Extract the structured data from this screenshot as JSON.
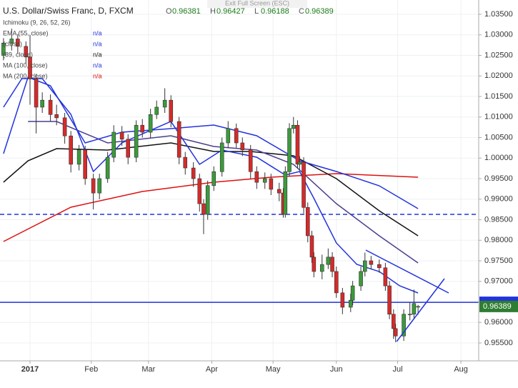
{
  "chart_data": {
    "type": "candlestick",
    "title": "U.S. Dollar/Swiss Franc, D, FXCM",
    "ohlc": [
      {
        "key": "O",
        "value": "0.96381"
      },
      {
        "key": "H",
        "value": "0.96427"
      },
      {
        "key": "L",
        "value": "0.96188"
      },
      {
        "key": "C",
        "value": "0.96389"
      }
    ],
    "banner": "Exit Full Screen (ESC)",
    "indicators": [
      {
        "label": "Ichimoku (9, 26, 52, 26)",
        "color": "#9aa7c0"
      },
      {
        "label": "EMA (55, close)",
        "status": "n/a",
        "color": "#2233dd"
      },
      {
        "label": "(close)",
        "status": "n/a",
        "color": "#2233dd"
      },
      {
        "label": "(89, close)",
        "status": "n/a",
        "color": "#111111"
      },
      {
        "label": "MA (100, close)",
        "status": "n/a",
        "color": "#2233dd"
      },
      {
        "label": "MA (200, close)",
        "status": "n/a",
        "color": "#dd1111"
      }
    ],
    "x": [
      -11,
      -7,
      -4,
      0,
      2,
      5,
      8,
      12,
      15,
      19,
      22,
      26,
      29,
      33,
      36,
      40,
      43,
      47,
      50,
      54,
      57,
      61,
      64,
      68,
      71,
      75,
      78,
      82,
      85,
      87,
      89,
      92,
      96,
      99,
      103,
      106,
      110,
      113,
      117,
      120,
      124,
      126,
      127,
      129,
      131,
      133,
      134,
      136,
      138,
      140,
      141,
      145,
      148,
      150,
      152,
      155,
      159,
      160,
      164,
      166,
      169,
      173,
      176,
      178,
      180,
      181,
      185,
      188,
      190,
      192
    ],
    "open": [
      1.025,
      1.028,
      1.029,
      1.0272,
      1.0246,
      1.0193,
      1.0124,
      1.0141,
      1.0106,
      1.0098,
      1.0054,
      0.9985,
      1.002,
      0.995,
      0.9915,
      0.995,
      1.0002,
      1.0063,
      1.0046,
      1.0002,
      1.008,
      1.0063,
      1.0106,
      1.0124,
      1.0141,
      1.0089,
      1.0002,
      0.9976,
      0.995,
      0.9889,
      0.9863,
      0.9933,
      0.9967,
      1.0037,
      1.0072,
      1.0037,
      1.002,
      0.9967,
      0.9941,
      0.995,
      0.9924,
      0.9915,
      0.9863,
      0.9967,
      1.0072,
      1.008,
      0.9985,
      0.999,
      0.988,
      0.9811,
      0.9759,
      0.9724,
      0.9741,
      0.9759,
      0.9724,
      0.9672,
      0.9637,
      0.9654,
      0.9689,
      0.9724,
      0.975,
      0.9741,
      0.9733,
      0.9689,
      0.962,
      0.9585,
      0.9567,
      0.962,
      0.962,
      0.96381
    ],
    "high": [
      1.0292,
      1.0315,
      1.0302,
      1.0284,
      1.03,
      1.0205,
      1.016,
      1.0155,
      1.013,
      1.011,
      1.0066,
      1.0032,
      1.003,
      0.9962,
      0.9962,
      1.0015,
      1.008,
      1.0078,
      1.0058,
      1.0092,
      1.0095,
      1.012,
      1.014,
      1.017,
      1.0153,
      1.01,
      1.0015,
      0.999,
      0.9962,
      0.99,
      0.9945,
      0.998,
      1.005,
      1.009,
      1.0084,
      1.005,
      1.0032,
      0.998,
      0.9965,
      0.9962,
      0.994,
      0.9927,
      0.998,
      1.0085,
      1.01,
      1.0092,
      1.0005,
      1.0002,
      0.9892,
      0.9823,
      0.9771,
      0.9765,
      0.978,
      0.9771,
      0.9736,
      0.9684,
      0.967,
      0.9701,
      0.9736,
      0.977,
      0.9762,
      0.9753,
      0.9745,
      0.9701,
      0.9632,
      0.9597,
      0.9632,
      0.965,
      0.968,
      0.96427
    ],
    "low": [
      1.0238,
      1.0262,
      1.0255,
      1.023,
      1.013,
      1.006,
      1.011,
      1.009,
      1.008,
      1.0035,
      0.9965,
      0.997,
      0.9935,
      0.9875,
      0.99,
      0.994,
      0.999,
      1.003,
      0.9985,
      0.999,
      1.005,
      1.005,
      1.0095,
      1.011,
      1.0075,
      0.9985,
      0.996,
      0.993,
      0.987,
      0.9815,
      0.985,
      0.992,
      0.9955,
      1.0025,
      1.0025,
      1.0005,
      0.995,
      0.9925,
      0.9925,
      0.991,
      0.9895,
      0.9855,
      0.9855,
      0.9955,
      1.006,
      0.9975,
      0.997,
      0.9865,
      0.9795,
      0.9745,
      0.971,
      0.9705,
      0.973,
      0.971,
      0.966,
      0.962,
      0.9625,
      0.9642,
      0.9677,
      0.9712,
      0.9729,
      0.9721,
      0.9677,
      0.9608,
      0.956,
      0.9552,
      0.9555,
      0.9605,
      0.961,
      0.96188
    ],
    "close": [
      1.028,
      1.029,
      1.0272,
      1.0246,
      1.0193,
      1.0124,
      1.0141,
      1.0106,
      1.0098,
      1.0054,
      0.9985,
      1.002,
      0.995,
      0.9915,
      0.995,
      1.0002,
      1.0063,
      1.0046,
      1.0002,
      1.008,
      1.0063,
      1.0106,
      1.0124,
      1.0141,
      1.0089,
      1.0002,
      0.9976,
      0.995,
      0.9889,
      0.9863,
      0.9933,
      0.9967,
      1.0037,
      1.0072,
      1.0037,
      1.002,
      0.9967,
      0.9941,
      0.995,
      0.9924,
      0.9915,
      0.9863,
      0.9967,
      1.0072,
      1.008,
      0.9985,
      0.999,
      0.988,
      0.9811,
      0.9759,
      0.9724,
      0.9741,
      0.9759,
      0.9724,
      0.9672,
      0.9637,
      0.9654,
      0.9689,
      0.9724,
      0.975,
      0.9741,
      0.9733,
      0.9689,
      0.962,
      0.9585,
      0.9567,
      0.962,
      0.962,
      0.9646,
      0.96389
    ],
    "up_color": "#3b9a3b",
    "down_color": "#d62a2a",
    "overlays": [
      {
        "color": "#dd1111",
        "x": [
          -11,
          22,
          57,
          92,
          120,
          152,
          192
        ],
        "values": [
          0.9797,
          0.98804,
          0.99187,
          0.99413,
          0.99535,
          0.99622,
          0.99535
        ]
      },
      {
        "color": "#111111",
        "x": [
          -11,
          1,
          15,
          40,
          71,
          92,
          110,
          131,
          152,
          173,
          192
        ],
        "values": [
          0.99413,
          0.99935,
          1.0023,
          1.00196,
          1.0037,
          1.00161,
          1.00161,
          1.00057,
          0.995,
          0.98717,
          0.98109
        ]
      },
      {
        "color": "#4b3f8f",
        "x": [
          1,
          15,
          40,
          71,
          92,
          113,
          131,
          152,
          173,
          192
        ],
        "values": [
          1.00891,
          1.00891,
          1.0037,
          1.00543,
          1.00283,
          1.00196,
          0.99848,
          0.98891,
          0.98109,
          0.97448
        ]
      },
      {
        "color": "#2233dd",
        "x": [
          -11,
          1,
          12,
          29,
          47,
          71,
          92,
          113,
          134,
          152,
          173,
          192
        ],
        "values": [
          1.00109,
          1.0197,
          1.01761,
          1.0037,
          1.0063,
          1.00717,
          1.00804,
          1.00543,
          0.99935,
          0.99674,
          0.99326,
          0.9877
        ]
      },
      {
        "color": "#2233dd",
        "x": [
          -11,
          -2,
          8,
          22,
          33,
          47,
          71,
          85,
          96,
          113,
          127,
          134,
          141,
          152,
          162,
          173,
          183,
          192
        ],
        "values": [
          1.01239,
          1.01935,
          1.01935,
          1.01065,
          0.99674,
          1.0037,
          1.00891,
          0.99848,
          1.00196,
          1.00022,
          0.99587,
          0.99674,
          0.99022,
          0.97935,
          0.97413,
          0.97239,
          0.96891,
          0.96717
        ]
      }
    ],
    "trendlines": [
      {
        "color": "#2233dd",
        "x": [
          166.4,
          207
        ],
        "values": [
          0.97761,
          0.96717
        ]
      },
      {
        "color": "#2233dd",
        "x": [
          181.5,
          204.9
        ],
        "values": [
          0.95535,
          0.97065
        ]
      }
    ],
    "hlines": [
      {
        "value": 0.9649,
        "color": "#2233dd",
        "dashed": false
      },
      {
        "value": 0.9863,
        "color": "#2233dd",
        "dashed": true
      }
    ],
    "xlim": [
      -12.7,
      221.7
    ],
    "ylim": [
      0.95065,
      1.03848
    ],
    "xticks": [
      {
        "value": 2,
        "label": "2017"
      },
      {
        "value": 32,
        "label": "Feb"
      },
      {
        "value": 60,
        "label": "Mar"
      },
      {
        "value": 91,
        "label": "Apr"
      },
      {
        "value": 121,
        "label": "May"
      },
      {
        "value": 152,
        "label": "Jun"
      },
      {
        "value": 182,
        "label": "Jul"
      },
      {
        "value": 213,
        "label": "Aug"
      }
    ],
    "yticks": [
      {
        "value": 1.035,
        "label": "1.03500"
      },
      {
        "value": 1.03,
        "label": "1.03000"
      },
      {
        "value": 1.025,
        "label": "1.02500"
      },
      {
        "value": 1.02,
        "label": "1.02000"
      },
      {
        "value": 1.015,
        "label": "1.01500"
      },
      {
        "value": 1.01,
        "label": "1.01000"
      },
      {
        "value": 1.005,
        "label": "1.00500"
      },
      {
        "value": 1.0,
        "label": "1.00000"
      },
      {
        "value": 0.995,
        "label": "0.99500"
      },
      {
        "value": 0.99,
        "label": "0.99000"
      },
      {
        "value": 0.985,
        "label": "0.98500"
      },
      {
        "value": 0.98,
        "label": "0.98000"
      },
      {
        "value": 0.975,
        "label": "0.97500"
      },
      {
        "value": 0.97,
        "label": "0.97000"
      },
      {
        "value": 0.965,
        "label": "0.96500"
      },
      {
        "value": 0.96,
        "label": "0.96000"
      },
      {
        "value": 0.955,
        "label": "0.95500"
      }
    ],
    "grid": true
  }
}
